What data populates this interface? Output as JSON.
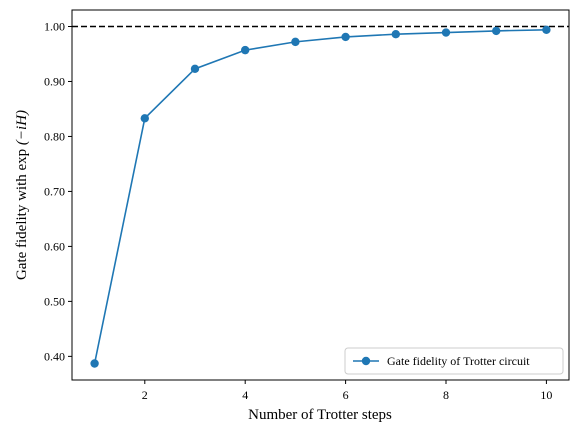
{
  "chart_data": {
    "type": "line",
    "title": "",
    "xlabel": "Number of Trotter steps",
    "ylabel_prefix": "Gate fidelity with exp",
    "ylabel_math": "(−iH)",
    "xlim": [
      0.55,
      10.45
    ],
    "ylim": [
      0.357,
      1.03
    ],
    "xticks": [
      2,
      4,
      6,
      8,
      10
    ],
    "yticks": [
      0.4,
      0.5,
      0.6,
      0.7,
      0.8,
      0.9,
      1.0
    ],
    "ytick_labels": [
      "0.40",
      "0.50",
      "0.60",
      "0.70",
      "0.80",
      "0.90",
      "1.00"
    ],
    "xtick_labels": [
      "2",
      "4",
      "6",
      "8",
      "10"
    ],
    "reference_line": {
      "y": 1.0,
      "style": "dashed",
      "color": "#000000"
    },
    "grid": false,
    "legend_position": "bottom-right",
    "series": [
      {
        "name": "Gate fidelity of Trotter circuit",
        "color": "#1f77b4",
        "marker": "circle",
        "x": [
          1,
          2,
          3,
          4,
          5,
          6,
          7,
          8,
          9,
          10
        ],
        "y": [
          0.387,
          0.833,
          0.923,
          0.957,
          0.972,
          0.981,
          0.986,
          0.989,
          0.992,
          0.994
        ]
      }
    ]
  }
}
